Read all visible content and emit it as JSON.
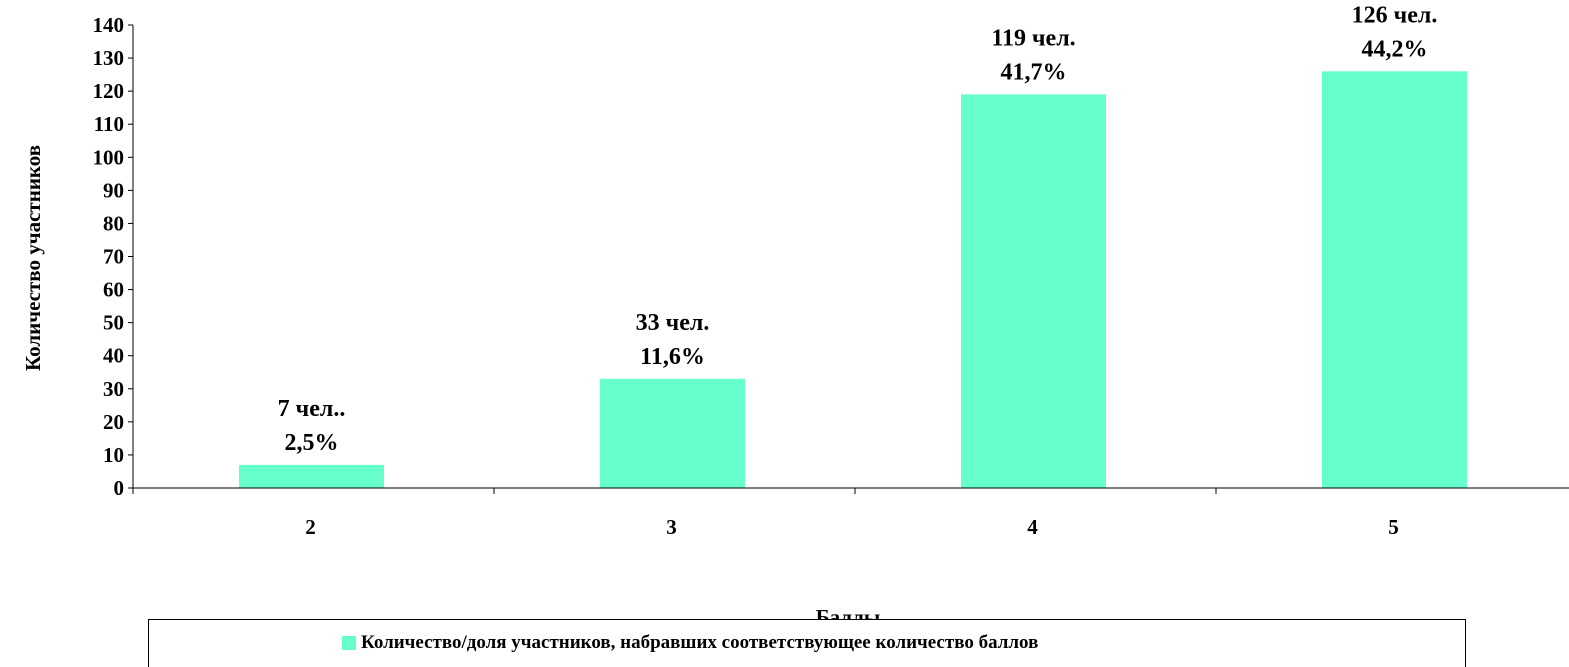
{
  "chart_data": {
    "type": "bar",
    "categories": [
      "2",
      "3",
      "4",
      "5"
    ],
    "series": [
      {
        "name": "Количество/доля участников, набравших соответствующее количество баллов",
        "values": [
          7,
          33,
          119,
          126
        ],
        "labels_count": [
          "7 чел..",
          "33 чел.",
          "119 чел.",
          "126 чел."
        ],
        "labels_percent": [
          "2,5%",
          "11,6%",
          "41,7%",
          "44,2%"
        ]
      }
    ],
    "ylabel": "Количество участников",
    "xlabel": "Баллы",
    "ylim": [
      0,
      140
    ],
    "yticks": [
      "0",
      "10",
      "20",
      "30",
      "40",
      "50",
      "60",
      "70",
      "80",
      "90",
      "100",
      "110",
      "120",
      "130",
      "140"
    ],
    "grid": false,
    "legend_position": "bottom",
    "bar_color": "#66FFCC"
  }
}
